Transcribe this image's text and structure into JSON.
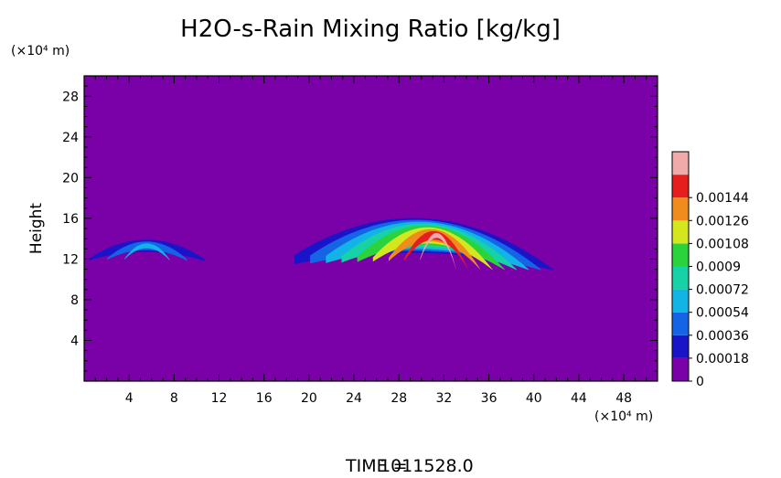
{
  "chart_data": {
    "type": "heatmap",
    "title": "H2O-s-Rain Mixing Ratio [kg/kg]",
    "ylabel": "Height",
    "x_unit": "(×10⁴ m)",
    "y_unit": "(×10⁴ m)",
    "xlim": [
      0,
      51
    ],
    "ylim": [
      0,
      30
    ],
    "x_ticks": [
      4,
      8,
      12,
      16,
      20,
      24,
      28,
      32,
      36,
      40,
      44,
      48
    ],
    "y_ticks": [
      4,
      8,
      12,
      16,
      20,
      24,
      28
    ],
    "background_color": "#7a00a8",
    "colorbar": {
      "levels": [
        "0",
        "0.00018",
        "0.00036",
        "0.00054",
        "0.00072",
        "0.0009",
        "0.00108",
        "0.00126",
        "0.00144"
      ],
      "colors": [
        "#7a00a8",
        "#1a14c8",
        "#1664e6",
        "#12b4e6",
        "#16d2a6",
        "#2ad23c",
        "#d4e61e",
        "#f08c1e",
        "#e61e1e",
        "#f0aaaa"
      ]
    },
    "features": [
      {
        "name": "left rain band",
        "x_range": [
          0.5,
          10.7
        ],
        "top_height": [
          12.1,
          13.9,
          12.0
        ],
        "base_height": [
          11.9,
          12.7,
          11.8
        ],
        "max_level": 0.00036
      },
      {
        "name": "right rain band",
        "x_range": [
          18.7,
          41.7
        ],
        "top_height": [
          12.4,
          16.0,
          11.0
        ],
        "base_height": [
          11.5,
          12.6,
          10.9
        ],
        "max_level": 0.00144
      }
    ],
    "grid": false,
    "legend": "right colorbar"
  },
  "footer": {
    "time_label": "TIME =",
    "time_value": "1011528.0"
  }
}
